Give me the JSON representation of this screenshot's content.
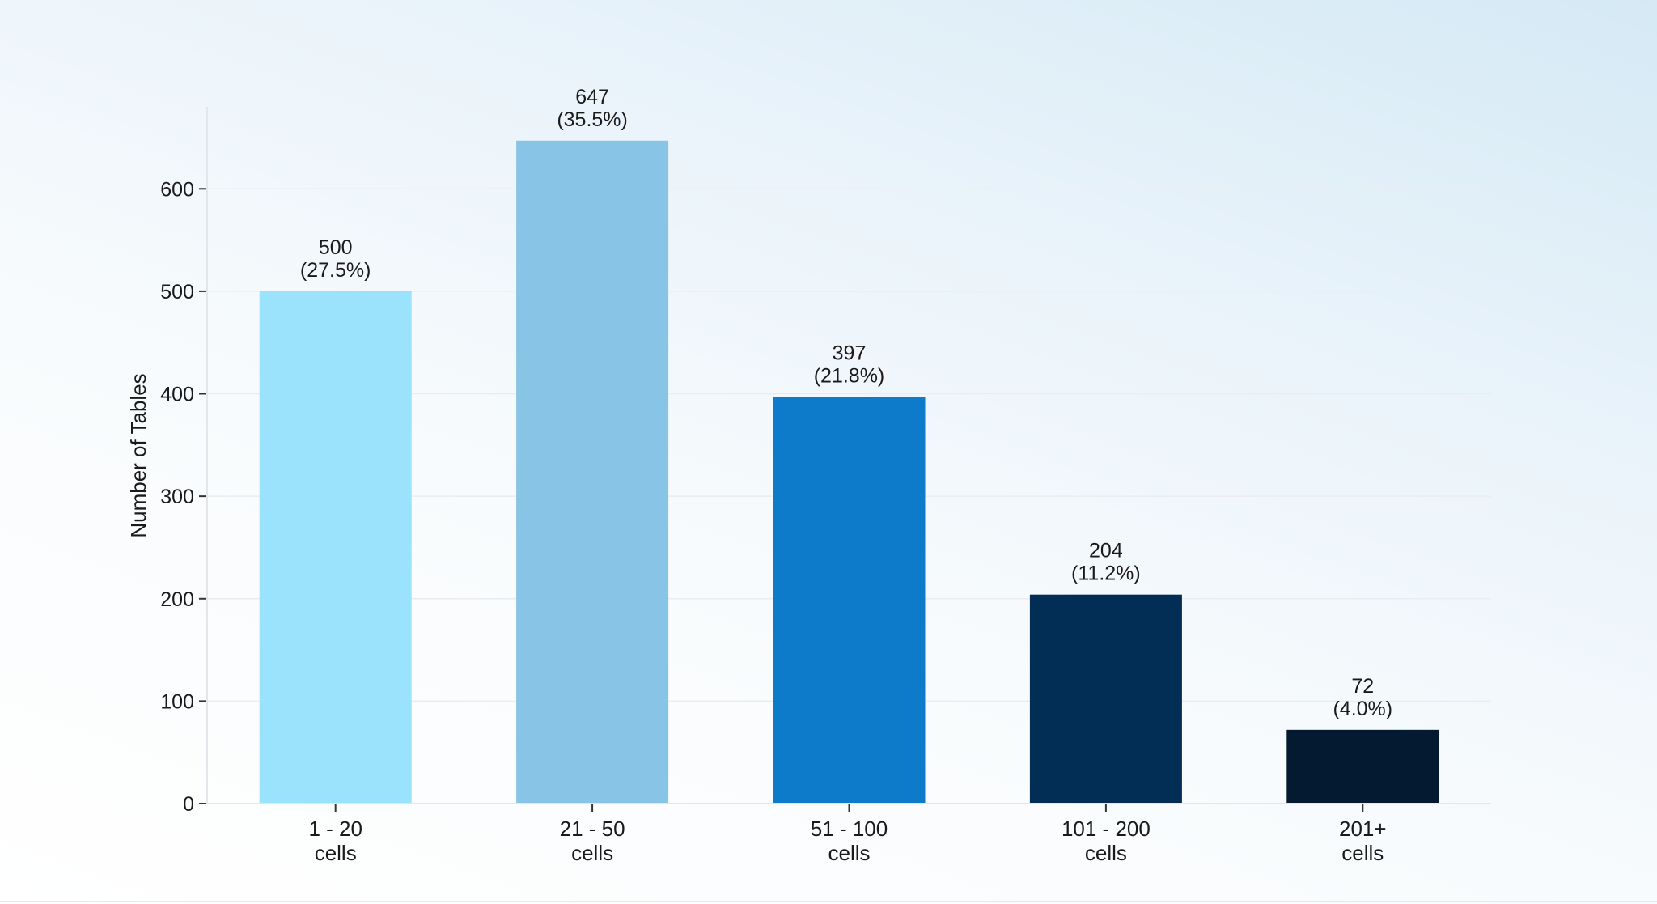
{
  "chart_data": {
    "type": "bar",
    "categories": [
      [
        "1 - 20",
        "cells"
      ],
      [
        "21 - 50",
        "cells"
      ],
      [
        "51 - 100",
        "cells"
      ],
      [
        "101 - 200",
        "cells"
      ],
      [
        "201+",
        "cells"
      ]
    ],
    "values": [
      500,
      647,
      397,
      204,
      72
    ],
    "value_labels": [
      "500",
      "647",
      "397",
      "204",
      "72"
    ],
    "percent_labels": [
      "(27.5%)",
      "(35.5%)",
      "(21.8%)",
      "(11.2%)",
      "(4.0%)"
    ],
    "colors": [
      "#9be2fc",
      "#88c4e6",
      "#0e7bca",
      "#022d54",
      "#031a30"
    ],
    "title": "",
    "xlabel": "",
    "ylabel": "Number of Tables",
    "ylim": [
      0,
      680
    ],
    "yticks": [
      0,
      100,
      200,
      300,
      400,
      500,
      600
    ],
    "grid": true,
    "legend": "none"
  }
}
